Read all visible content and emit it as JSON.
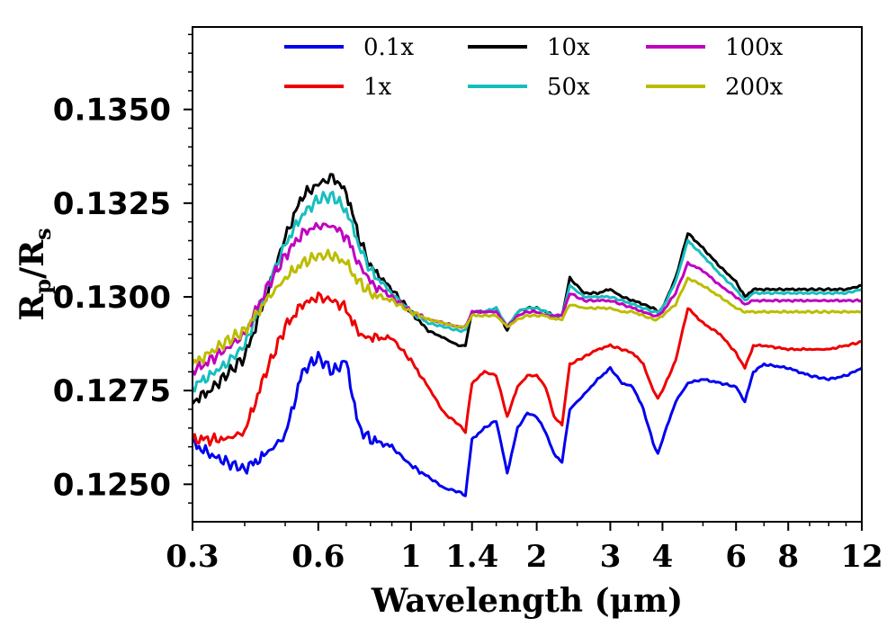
{
  "chart_data": {
    "type": "line",
    "title": "",
    "xlabel": "Wavelength (μm)",
    "ylabel_main": "R",
    "ylabel_sub1": "p",
    "ylabel_slash": "/R",
    "ylabel_sub2": "s",
    "xscale": "log",
    "xlim": [
      0.3,
      12
    ],
    "ylim": [
      0.124,
      0.1372
    ],
    "xticks": [
      0.3,
      0.6,
      1,
      1.4,
      2,
      3,
      4,
      6,
      8,
      12
    ],
    "xtick_labels": [
      "0.3",
      "0.6",
      "1",
      "1.4",
      "2",
      "3",
      "4",
      "6",
      "8",
      "12"
    ],
    "yticks": [
      0.125,
      0.1275,
      0.13,
      0.1325,
      0.135
    ],
    "ytick_labels": [
      "0.1250",
      "0.1275",
      "0.1300",
      "0.1325",
      "0.1350"
    ],
    "legend_position": "top",
    "series": [
      {
        "name": "0.1x",
        "color": "#0000ee",
        "x": [
          0.3,
          0.33,
          0.36,
          0.4,
          0.45,
          0.5,
          0.55,
          0.6,
          0.65,
          0.7,
          0.75,
          0.8,
          0.9,
          1.0,
          1.1,
          1.2,
          1.3,
          1.35,
          1.4,
          1.5,
          1.6,
          1.7,
          1.8,
          1.9,
          2.0,
          2.1,
          2.2,
          2.3,
          2.4,
          2.6,
          2.8,
          3.0,
          3.2,
          3.4,
          3.6,
          3.8,
          3.9,
          4.0,
          4.3,
          4.6,
          5.0,
          5.5,
          6.0,
          6.3,
          6.6,
          7.0,
          8.0,
          9.0,
          10.0,
          11.0,
          12.0
        ],
        "y": [
          0.1261,
          0.1258,
          0.1256,
          0.1254,
          0.1258,
          0.1263,
          0.128,
          0.1284,
          0.128,
          0.1283,
          0.1265,
          0.1262,
          0.126,
          0.1255,
          0.1252,
          0.1249,
          0.1248,
          0.1247,
          0.1262,
          0.1265,
          0.1267,
          0.1253,
          0.1265,
          0.1269,
          0.1268,
          0.1264,
          0.1258,
          0.1256,
          0.127,
          0.1274,
          0.1278,
          0.1281,
          0.1277,
          0.1276,
          0.127,
          0.1261,
          0.1258,
          0.1262,
          0.1272,
          0.1277,
          0.1278,
          0.1277,
          0.1276,
          0.1272,
          0.128,
          0.1282,
          0.1281,
          0.1279,
          0.1278,
          0.1279,
          0.1281
        ]
      },
      {
        "name": "1x",
        "color": "#ee0000",
        "x": [
          0.3,
          0.33,
          0.36,
          0.4,
          0.45,
          0.5,
          0.55,
          0.6,
          0.65,
          0.7,
          0.75,
          0.8,
          0.9,
          1.0,
          1.1,
          1.2,
          1.3,
          1.35,
          1.4,
          1.5,
          1.6,
          1.7,
          1.8,
          1.9,
          2.0,
          2.1,
          2.2,
          2.3,
          2.4,
          2.6,
          2.8,
          3.0,
          3.2,
          3.4,
          3.6,
          3.8,
          3.9,
          4.0,
          4.3,
          4.6,
          5.0,
          5.5,
          6.0,
          6.3,
          6.6,
          7.0,
          8.0,
          9.0,
          10.0,
          11.0,
          12.0
        ],
        "y": [
          0.1262,
          0.1262,
          0.1262,
          0.1264,
          0.128,
          0.1292,
          0.1298,
          0.13,
          0.1299,
          0.1297,
          0.129,
          0.1289,
          0.1289,
          0.1283,
          0.1276,
          0.1269,
          0.1266,
          0.1264,
          0.1277,
          0.128,
          0.1279,
          0.1268,
          0.1276,
          0.1279,
          0.1279,
          0.1276,
          0.1268,
          0.1266,
          0.1282,
          0.1284,
          0.1286,
          0.1287,
          0.1286,
          0.1285,
          0.1282,
          0.1275,
          0.1273,
          0.1275,
          0.1283,
          0.1297,
          0.1293,
          0.129,
          0.1285,
          0.1281,
          0.1287,
          0.1287,
          0.1286,
          0.1286,
          0.1286,
          0.1287,
          0.1288
        ]
      },
      {
        "name": "10x",
        "color": "#000000",
        "x": [
          0.3,
          0.33,
          0.36,
          0.4,
          0.45,
          0.5,
          0.55,
          0.6,
          0.65,
          0.7,
          0.75,
          0.8,
          0.9,
          1.0,
          1.1,
          1.2,
          1.3,
          1.35,
          1.4,
          1.5,
          1.6,
          1.7,
          1.8,
          1.9,
          2.0,
          2.1,
          2.2,
          2.3,
          2.4,
          2.6,
          2.8,
          3.0,
          3.2,
          3.4,
          3.6,
          3.8,
          3.9,
          4.0,
          4.3,
          4.6,
          5.0,
          5.5,
          6.0,
          6.3,
          6.6,
          7.0,
          8.0,
          9.0,
          10.0,
          11.0,
          12.0
        ],
        "y": [
          0.1272,
          0.1275,
          0.1279,
          0.1284,
          0.13,
          0.1316,
          0.1327,
          0.133,
          0.1332,
          0.1328,
          0.1316,
          0.1308,
          0.1302,
          0.1296,
          0.1291,
          0.1289,
          0.1287,
          0.1287,
          0.1296,
          0.1296,
          0.1297,
          0.1291,
          0.1296,
          0.1297,
          0.1297,
          0.1296,
          0.1295,
          0.1295,
          0.1305,
          0.1301,
          0.1301,
          0.1302,
          0.13,
          0.1299,
          0.1298,
          0.1297,
          0.1296,
          0.1297,
          0.1305,
          0.1317,
          0.1313,
          0.1308,
          0.1304,
          0.13,
          0.1302,
          0.1302,
          0.1302,
          0.1302,
          0.1302,
          0.1302,
          0.1303
        ]
      },
      {
        "name": "50x",
        "color": "#17bebe",
        "x": [
          0.3,
          0.33,
          0.36,
          0.4,
          0.45,
          0.5,
          0.55,
          0.6,
          0.65,
          0.7,
          0.75,
          0.8,
          0.9,
          1.0,
          1.1,
          1.2,
          1.3,
          1.35,
          1.4,
          1.5,
          1.6,
          1.7,
          1.8,
          1.9,
          2.0,
          2.1,
          2.2,
          2.3,
          2.4,
          2.6,
          2.8,
          3.0,
          3.2,
          3.4,
          3.6,
          3.8,
          3.9,
          4.0,
          4.3,
          4.6,
          5.0,
          5.5,
          6.0,
          6.3,
          6.6,
          7.0,
          8.0,
          9.0,
          10.0,
          11.0,
          12.0
        ],
        "y": [
          0.1276,
          0.1279,
          0.1282,
          0.1287,
          0.1302,
          0.1314,
          0.1322,
          0.1326,
          0.1327,
          0.1323,
          0.1314,
          0.1307,
          0.1301,
          0.1296,
          0.1293,
          0.1292,
          0.1291,
          0.1291,
          0.1296,
          0.1296,
          0.1297,
          0.1292,
          0.1296,
          0.1297,
          0.1297,
          0.1296,
          0.1295,
          0.1295,
          0.1303,
          0.13,
          0.13,
          0.13,
          0.1299,
          0.1298,
          0.1297,
          0.1296,
          0.1296,
          0.1297,
          0.1304,
          0.1315,
          0.1311,
          0.1306,
          0.1302,
          0.1299,
          0.1301,
          0.1301,
          0.1301,
          0.1301,
          0.1301,
          0.1301,
          0.1302
        ]
      },
      {
        "name": "100x",
        "color": "#c000c0",
        "x": [
          0.3,
          0.33,
          0.36,
          0.4,
          0.45,
          0.5,
          0.55,
          0.6,
          0.65,
          0.7,
          0.75,
          0.8,
          0.9,
          1.0,
          1.1,
          1.2,
          1.3,
          1.35,
          1.4,
          1.5,
          1.6,
          1.7,
          1.8,
          1.9,
          2.0,
          2.1,
          2.2,
          2.3,
          2.4,
          2.6,
          2.8,
          3.0,
          3.2,
          3.4,
          3.6,
          3.8,
          3.9,
          4.0,
          4.3,
          4.6,
          5.0,
          5.5,
          6.0,
          6.3,
          6.6,
          7.0,
          8.0,
          9.0,
          10.0,
          11.0,
          12.0
        ],
        "y": [
          0.128,
          0.1283,
          0.1286,
          0.129,
          0.1302,
          0.1311,
          0.1317,
          0.1319,
          0.1319,
          0.1316,
          0.1309,
          0.1304,
          0.13,
          0.1296,
          0.1294,
          0.1293,
          0.1292,
          0.1292,
          0.1296,
          0.1296,
          0.1296,
          0.1292,
          0.1295,
          0.1296,
          0.1296,
          0.1295,
          0.1295,
          0.1295,
          0.1301,
          0.1299,
          0.1299,
          0.1299,
          0.1298,
          0.1297,
          0.1296,
          0.1295,
          0.1295,
          0.1296,
          0.1301,
          0.1309,
          0.1307,
          0.1303,
          0.13,
          0.1298,
          0.1299,
          0.1299,
          0.1299,
          0.1299,
          0.1299,
          0.1299,
          0.1299
        ]
      },
      {
        "name": "200x",
        "color": "#bcbc00",
        "x": [
          0.3,
          0.33,
          0.36,
          0.4,
          0.45,
          0.5,
          0.55,
          0.6,
          0.65,
          0.7,
          0.75,
          0.8,
          0.9,
          1.0,
          1.1,
          1.2,
          1.3,
          1.35,
          1.4,
          1.5,
          1.6,
          1.7,
          1.8,
          1.9,
          2.0,
          2.1,
          2.2,
          2.3,
          2.4,
          2.6,
          2.8,
          3.0,
          3.2,
          3.4,
          3.6,
          3.8,
          3.9,
          4.0,
          4.3,
          4.6,
          5.0,
          5.5,
          6.0,
          6.3,
          6.6,
          7.0,
          8.0,
          9.0,
          10.0,
          11.0,
          12.0
        ],
        "y": [
          0.1282,
          0.1285,
          0.1288,
          0.1291,
          0.1299,
          0.1305,
          0.1309,
          0.1311,
          0.1311,
          0.1309,
          0.1304,
          0.1301,
          0.1299,
          0.1296,
          0.1294,
          0.1293,
          0.1292,
          0.1292,
          0.1295,
          0.1295,
          0.1295,
          0.1292,
          0.1294,
          0.1295,
          0.1295,
          0.1295,
          0.1294,
          0.1294,
          0.1298,
          0.1297,
          0.1297,
          0.1297,
          0.1296,
          0.1296,
          0.1295,
          0.1294,
          0.1294,
          0.1295,
          0.1298,
          0.1305,
          0.1303,
          0.13,
          0.1297,
          0.1296,
          0.1296,
          0.1296,
          0.1296,
          0.1296,
          0.1296,
          0.1296,
          0.1296
        ]
      }
    ]
  }
}
